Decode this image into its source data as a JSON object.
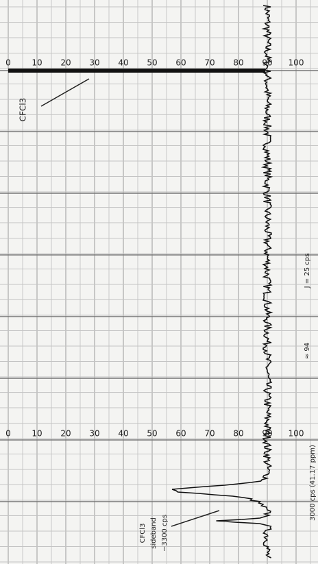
{
  "scale_top": {
    "ticks": [
      0,
      10,
      20,
      30,
      40,
      50,
      60,
      70,
      80,
      90,
      100
    ]
  },
  "scale_bottom": {
    "ticks": [
      0,
      10,
      20,
      30,
      40,
      50,
      60,
      70,
      80,
      90,
      100
    ]
  },
  "annotations": {
    "reference": "CFCl3",
    "coupling": "J = 25 cps",
    "mark": "≈ 94",
    "sideband_label": "CFCl3",
    "sideband_word": "sideband",
    "sideband_offset": "~3300 cps",
    "bottom_note": "3000 cps (41.17 ppm)"
  }
}
